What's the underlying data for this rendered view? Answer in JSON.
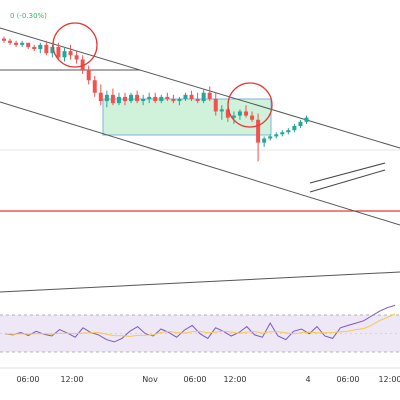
{
  "legend": {
    "change_text": "0 (-0.30%)",
    "color": "#3bb36e"
  },
  "colors": {
    "up": "#26a69a",
    "down": "#ef5350",
    "trend": "#555555",
    "level": "#e53935",
    "circle": "#e53935",
    "box_fill": "#c8efd4",
    "box_stroke": "#7fb3e0",
    "wedge": "#444444",
    "rsi_band": "#ede7f6",
    "rsi_line": "#7e57c2",
    "rsi_ma": "#f6c94c"
  },
  "chart_data": {
    "type": "candlestick",
    "xaxis_labels": [
      "06:00",
      "12:00",
      "Nov",
      "06:00",
      "12:00",
      "4",
      "06:00",
      "12:00"
    ],
    "ylim": [
      0,
      100
    ],
    "candles": [
      {
        "o": 92,
        "h": 93,
        "l": 90,
        "c": 91
      },
      {
        "o": 91,
        "h": 92,
        "l": 89,
        "c": 90
      },
      {
        "o": 90,
        "h": 91,
        "l": 88,
        "c": 89
      },
      {
        "o": 89,
        "h": 91,
        "l": 88,
        "c": 90
      },
      {
        "o": 90,
        "h": 90,
        "l": 87,
        "c": 88
      },
      {
        "o": 88,
        "h": 89,
        "l": 86,
        "c": 87
      },
      {
        "o": 87,
        "h": 90,
        "l": 85,
        "c": 89
      },
      {
        "o": 89,
        "h": 91,
        "l": 84,
        "c": 85
      },
      {
        "o": 85,
        "h": 89,
        "l": 83,
        "c": 88
      },
      {
        "o": 88,
        "h": 90,
        "l": 82,
        "c": 83
      },
      {
        "o": 83,
        "h": 88,
        "l": 81,
        "c": 86
      },
      {
        "o": 86,
        "h": 89,
        "l": 82,
        "c": 84
      },
      {
        "o": 84,
        "h": 86,
        "l": 80,
        "c": 82
      },
      {
        "o": 82,
        "h": 84,
        "l": 75,
        "c": 77
      },
      {
        "o": 77,
        "h": 79,
        "l": 70,
        "c": 72
      },
      {
        "o": 72,
        "h": 74,
        "l": 64,
        "c": 66
      },
      {
        "o": 66,
        "h": 70,
        "l": 60,
        "c": 62
      },
      {
        "o": 62,
        "h": 67,
        "l": 59,
        "c": 65
      },
      {
        "o": 65,
        "h": 68,
        "l": 60,
        "c": 61
      },
      {
        "o": 61,
        "h": 66,
        "l": 60,
        "c": 64
      },
      {
        "o": 64,
        "h": 66,
        "l": 60,
        "c": 62
      },
      {
        "o": 62,
        "h": 66,
        "l": 61,
        "c": 65
      },
      {
        "o": 65,
        "h": 67,
        "l": 61,
        "c": 62
      },
      {
        "o": 62,
        "h": 65,
        "l": 60,
        "c": 63
      },
      {
        "o": 63,
        "h": 66,
        "l": 61,
        "c": 64
      },
      {
        "o": 64,
        "h": 66,
        "l": 61,
        "c": 62
      },
      {
        "o": 62,
        "h": 65,
        "l": 61,
        "c": 64
      },
      {
        "o": 64,
        "h": 66,
        "l": 62,
        "c": 63
      },
      {
        "o": 63,
        "h": 65,
        "l": 61,
        "c": 62
      },
      {
        "o": 62,
        "h": 64,
        "l": 60,
        "c": 63
      },
      {
        "o": 63,
        "h": 66,
        "l": 62,
        "c": 65
      },
      {
        "o": 65,
        "h": 67,
        "l": 62,
        "c": 63
      },
      {
        "o": 63,
        "h": 66,
        "l": 61,
        "c": 62
      },
      {
        "o": 62,
        "h": 68,
        "l": 61,
        "c": 66
      },
      {
        "o": 66,
        "h": 69,
        "l": 62,
        "c": 63
      },
      {
        "o": 63,
        "h": 66,
        "l": 55,
        "c": 57
      },
      {
        "o": 57,
        "h": 60,
        "l": 53,
        "c": 58
      },
      {
        "o": 58,
        "h": 59,
        "l": 52,
        "c": 54
      },
      {
        "o": 54,
        "h": 57,
        "l": 51,
        "c": 55
      },
      {
        "o": 55,
        "h": 58,
        "l": 53,
        "c": 57
      },
      {
        "o": 57,
        "h": 60,
        "l": 54,
        "c": 55
      },
      {
        "o": 55,
        "h": 57,
        "l": 52,
        "c": 53
      },
      {
        "o": 53,
        "h": 56,
        "l": 33,
        "c": 42
      },
      {
        "o": 42,
        "h": 45,
        "l": 40,
        "c": 44
      },
      {
        "o": 44,
        "h": 46,
        "l": 43,
        "c": 45
      },
      {
        "o": 45,
        "h": 47,
        "l": 44,
        "c": 46
      },
      {
        "o": 46,
        "h": 48,
        "l": 45,
        "c": 47
      },
      {
        "o": 47,
        "h": 49,
        "l": 46,
        "c": 48
      },
      {
        "o": 48,
        "h": 51,
        "l": 47,
        "c": 50
      },
      {
        "o": 50,
        "h": 53,
        "l": 49,
        "c": 52
      },
      {
        "o": 52,
        "h": 55,
        "l": 51,
        "c": 54
      }
    ],
    "rsi": [
      48,
      46,
      50,
      45,
      52,
      47,
      44,
      55,
      49,
      42,
      58,
      50,
      46,
      38,
      34,
      40,
      52,
      60,
      48,
      44,
      56,
      50,
      42,
      54,
      62,
      48,
      40,
      58,
      52,
      44,
      50,
      60,
      46,
      42,
      66,
      44,
      38,
      52,
      56,
      48,
      60,
      44,
      40,
      58,
      62,
      66,
      70,
      78,
      86,
      92,
      96
    ]
  }
}
